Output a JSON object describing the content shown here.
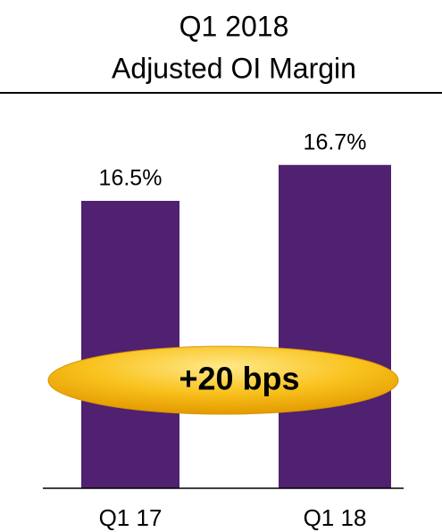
{
  "chart_data": {
    "type": "bar",
    "title": "Q1 2018",
    "subtitle": "Adjusted OI Margin",
    "categories": [
      "Q1 17",
      "Q1 18"
    ],
    "values": [
      16.5,
      16.7
    ],
    "value_labels": [
      "16.5%",
      "16.7%"
    ],
    "color": "#4f2170",
    "ylim": [
      14.9,
      17.0
    ],
    "annotation": "+20 bps"
  }
}
